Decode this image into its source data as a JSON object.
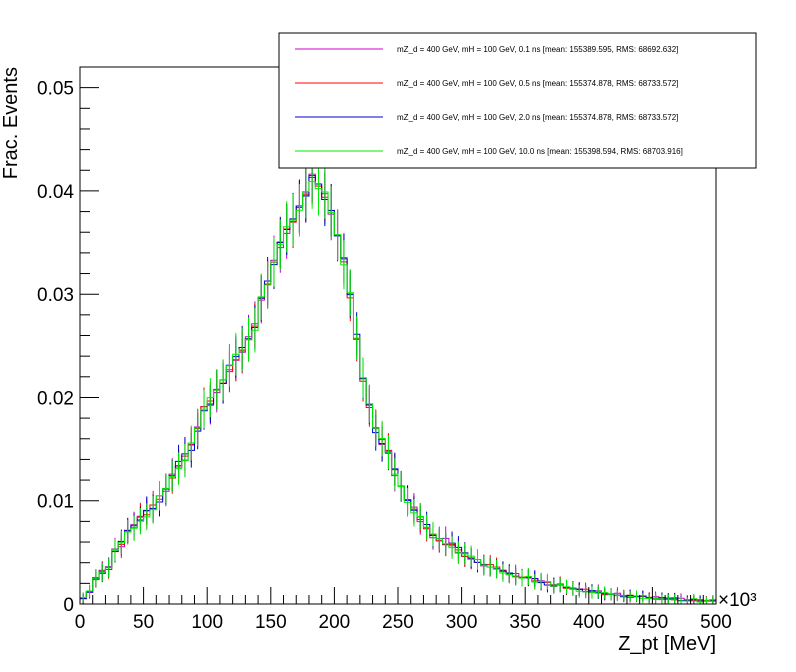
{
  "chart_data": {
    "type": "line",
    "xlabel": "Z_pt [MeV]",
    "ylabel": "Frac. Events",
    "x_multiplier": "×10³",
    "xlim": [
      0,
      500000
    ],
    "ylim": [
      0,
      0.052
    ],
    "x_ticks": [
      0,
      50,
      100,
      150,
      200,
      250,
      300,
      350,
      400,
      450,
      500
    ],
    "y_ticks": [
      0,
      0.01,
      0.02,
      0.03,
      0.04,
      0.05
    ],
    "x_tick_labels": [
      "0",
      "50",
      "100",
      "150",
      "200",
      "250",
      "300",
      "350",
      "400",
      "450",
      "500"
    ],
    "y_tick_labels": [
      "0",
      "0.01",
      "0.02",
      "0.03",
      "0.04",
      "0.05"
    ],
    "grid": false,
    "legend_position": "top-right",
    "bin_width": 5000,
    "bin_start": 0,
    "base_values": [
      0.0005,
      0.0012,
      0.0025,
      0.003,
      0.0035,
      0.0052,
      0.0058,
      0.0068,
      0.0075,
      0.0082,
      0.0088,
      0.0094,
      0.0102,
      0.0112,
      0.0125,
      0.0135,
      0.0142,
      0.0152,
      0.0168,
      0.0188,
      0.0196,
      0.0205,
      0.0215,
      0.0228,
      0.0238,
      0.0245,
      0.0255,
      0.0268,
      0.0295,
      0.031,
      0.033,
      0.0348,
      0.0362,
      0.0372,
      0.0385,
      0.0398,
      0.0412,
      0.0405,
      0.0395,
      0.038,
      0.0358,
      0.0332,
      0.0298,
      0.0258,
      0.0218,
      0.019,
      0.0168,
      0.0158,
      0.0148,
      0.0128,
      0.0112,
      0.0102,
      0.0092,
      0.0082,
      0.0075,
      0.0065,
      0.0062,
      0.006,
      0.0057,
      0.0053,
      0.0048,
      0.0046,
      0.0042,
      0.004,
      0.0037,
      0.0035,
      0.0032,
      0.003,
      0.0028,
      0.0026,
      0.0025,
      0.0023,
      0.0022,
      0.002,
      0.0019,
      0.0018,
      0.0016,
      0.0015,
      0.0014,
      0.0013,
      0.0012,
      0.0011,
      0.001,
      0.0009,
      0.0009,
      0.0008,
      0.0008,
      0.0007,
      0.0007,
      0.0006,
      0.0006,
      0.0005,
      0.0005,
      0.0005,
      0.0004,
      0.0004,
      0.0004,
      0.0003,
      0.0003,
      0.0003
    ],
    "series": [
      {
        "name": "mZ_d = 400 GeV, mH = 100 GeV, 0.1 ns [mean: 155389.595, RMS: 68692.632]",
        "color": "#cc00cc",
        "jitter": 0.00045
      },
      {
        "name": "mZ_d = 400 GeV, mH = 100 GeV, 0.5 ns [mean: 155374.878, RMS: 68733.572]",
        "color": "#ff0000",
        "jitter": 0.0003
      },
      {
        "name": "mZ_d = 400 GeV, mH = 100 GeV, 2.0 ns [mean: 155374.878, RMS: 68733.572]",
        "color": "#0000cc",
        "jitter": 0.00035
      },
      {
        "name": "mZ_d = 400 GeV, mH = 100 GeV, 10.0 ns [mean: 155398.594, RMS: 68703.916]",
        "color": "#00ee00",
        "jitter": 0.0004
      }
    ]
  }
}
